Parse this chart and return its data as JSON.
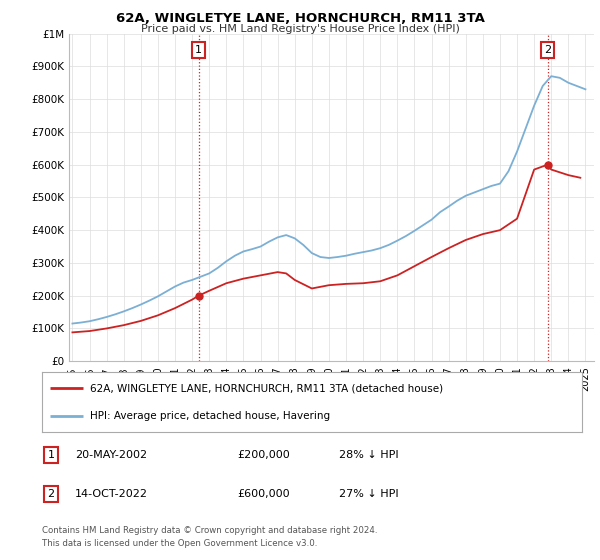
{
  "title": "62A, WINGLETYE LANE, HORNCHURCH, RM11 3TA",
  "subtitle": "Price paid vs. HM Land Registry's House Price Index (HPI)",
  "legend_line1": "62A, WINGLETYE LANE, HORNCHURCH, RM11 3TA (detached house)",
  "legend_line2": "HPI: Average price, detached house, Havering",
  "footer1": "Contains HM Land Registry data © Crown copyright and database right 2024.",
  "footer2": "This data is licensed under the Open Government Licence v3.0.",
  "table_rows": [
    {
      "num": "1",
      "date": "20-MAY-2002",
      "price": "£200,000",
      "hpi": "28% ↓ HPI"
    },
    {
      "num": "2",
      "date": "14-OCT-2022",
      "price": "£600,000",
      "hpi": "27% ↓ HPI"
    }
  ],
  "annotation1": {
    "x": 2002.38,
    "label": "1",
    "marker_y": 200000
  },
  "annotation2": {
    "x": 2022.79,
    "label": "2",
    "marker_y": 600000
  },
  "hpi_years": [
    1995,
    1995.5,
    1996,
    1996.5,
    1997,
    1997.5,
    1998,
    1998.5,
    1999,
    1999.5,
    2000,
    2000.5,
    2001,
    2001.5,
    2002,
    2002.5,
    2003,
    2003.5,
    2004,
    2004.5,
    2005,
    2005.5,
    2006,
    2006.5,
    2007,
    2007.5,
    2008,
    2008.5,
    2009,
    2009.5,
    2010,
    2010.5,
    2011,
    2011.5,
    2012,
    2012.5,
    2013,
    2013.5,
    2014,
    2014.5,
    2015,
    2015.5,
    2016,
    2016.5,
    2017,
    2017.5,
    2018,
    2018.5,
    2019,
    2019.5,
    2020,
    2020.5,
    2021,
    2021.5,
    2022,
    2022.5,
    2023,
    2023.5,
    2024,
    2024.5,
    2025
  ],
  "hpi_values": [
    115000,
    118000,
    122000,
    128000,
    135000,
    143000,
    152000,
    162000,
    173000,
    185000,
    198000,
    213000,
    228000,
    240000,
    248000,
    258000,
    268000,
    285000,
    305000,
    322000,
    335000,
    342000,
    350000,
    365000,
    378000,
    385000,
    375000,
    355000,
    330000,
    318000,
    315000,
    318000,
    322000,
    328000,
    333000,
    338000,
    345000,
    355000,
    368000,
    382000,
    398000,
    415000,
    432000,
    455000,
    472000,
    490000,
    505000,
    515000,
    525000,
    535000,
    542000,
    580000,
    640000,
    710000,
    780000,
    840000,
    870000,
    865000,
    850000,
    840000,
    830000
  ],
  "price_years": [
    1995,
    1995.5,
    1996,
    1997,
    1998,
    1999,
    2000,
    2001,
    2001.5,
    2002,
    2002.38,
    2003,
    2004,
    2005,
    2006,
    2007,
    2007.5,
    2008,
    2009,
    2010,
    2011,
    2012,
    2013,
    2014,
    2015,
    2016,
    2017,
    2018,
    2019,
    2020,
    2021,
    2022,
    2022.79,
    2023,
    2024,
    2024.7
  ],
  "price_values": [
    88000,
    90000,
    92000,
    100000,
    110000,
    123000,
    140000,
    162000,
    175000,
    188000,
    200000,
    215000,
    238000,
    252000,
    262000,
    272000,
    268000,
    248000,
    222000,
    232000,
    236000,
    238000,
    244000,
    262000,
    290000,
    318000,
    345000,
    370000,
    388000,
    400000,
    435000,
    585000,
    600000,
    585000,
    568000,
    560000
  ],
  "ylim": [
    0,
    1000000
  ],
  "xlim": [
    1994.8,
    2025.5
  ],
  "yticks": [
    0,
    100000,
    200000,
    300000,
    400000,
    500000,
    600000,
    700000,
    800000,
    900000,
    1000000
  ],
  "ytick_labels": [
    "£0",
    "£100K",
    "£200K",
    "£300K",
    "£400K",
    "£500K",
    "£600K",
    "£700K",
    "£800K",
    "£900K",
    "£1M"
  ],
  "xticks": [
    1995,
    1996,
    1997,
    1998,
    1999,
    2000,
    2001,
    2002,
    2003,
    2004,
    2005,
    2006,
    2007,
    2008,
    2009,
    2010,
    2011,
    2012,
    2013,
    2014,
    2015,
    2016,
    2017,
    2018,
    2019,
    2020,
    2021,
    2022,
    2023,
    2024,
    2025
  ],
  "hpi_color": "#7bafd4",
  "price_color": "#cc2222",
  "annotation_color": "#cc2222",
  "grid_color": "#dddddd",
  "bg_color": "#ffffff"
}
